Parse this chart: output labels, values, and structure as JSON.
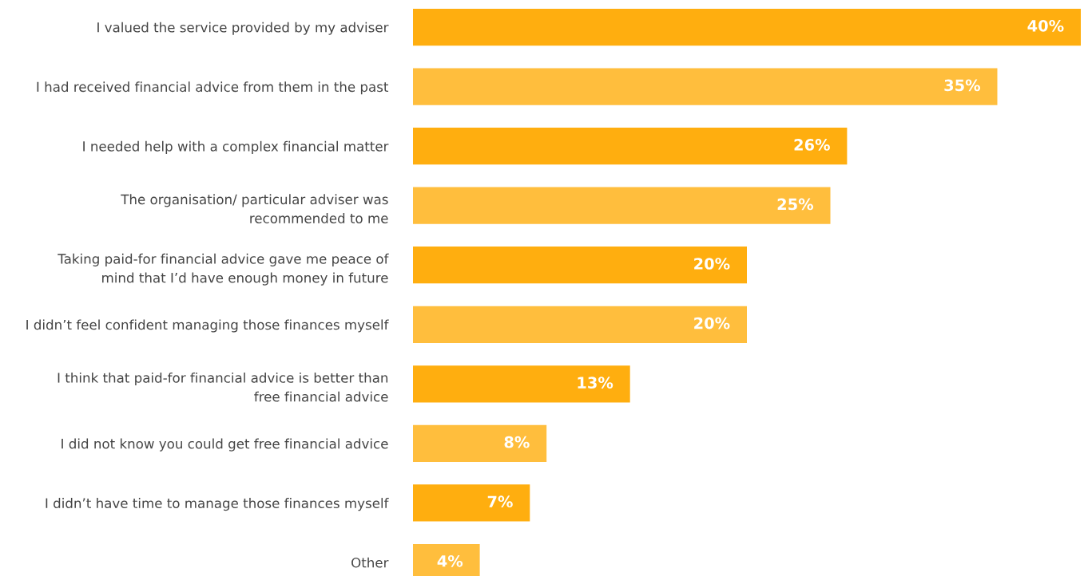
{
  "chart_data": {
    "type": "bar",
    "orientation": "horizontal",
    "categories": [
      "I valued the service provided by my adviser",
      "I had received financial advice from them in the past",
      "I needed help with a complex financial matter",
      "The organisation/ particular adviser was\nrecommended to me",
      "Taking paid-for financial advice gave me peace of\nmind that I’d have enough money in future",
      "I didn’t feel confident managing those finances myself",
      "I think that paid-for financial advice is better than\nfree financial advice",
      "I did not know you could get free financial advice",
      "I didn’t have time to manage those finances myself",
      "Other"
    ],
    "values": [
      40,
      35,
      26,
      25,
      20,
      20,
      13,
      8,
      7,
      4
    ],
    "value_labels": [
      "40%",
      "35%",
      "26%",
      "25%",
      "20%",
      "20%",
      "13%",
      "8%",
      "7%",
      "4%"
    ],
    "colors": [
      "#ffae0f",
      "#ffbe3d",
      "#ffae0f",
      "#ffbe3d",
      "#ffae0f",
      "#ffbe3d",
      "#ffae0f",
      "#ffbe3d",
      "#ffae0f",
      "#ffbe3d"
    ],
    "tick_labels": "y",
    "grid": false,
    "legend": false
  }
}
